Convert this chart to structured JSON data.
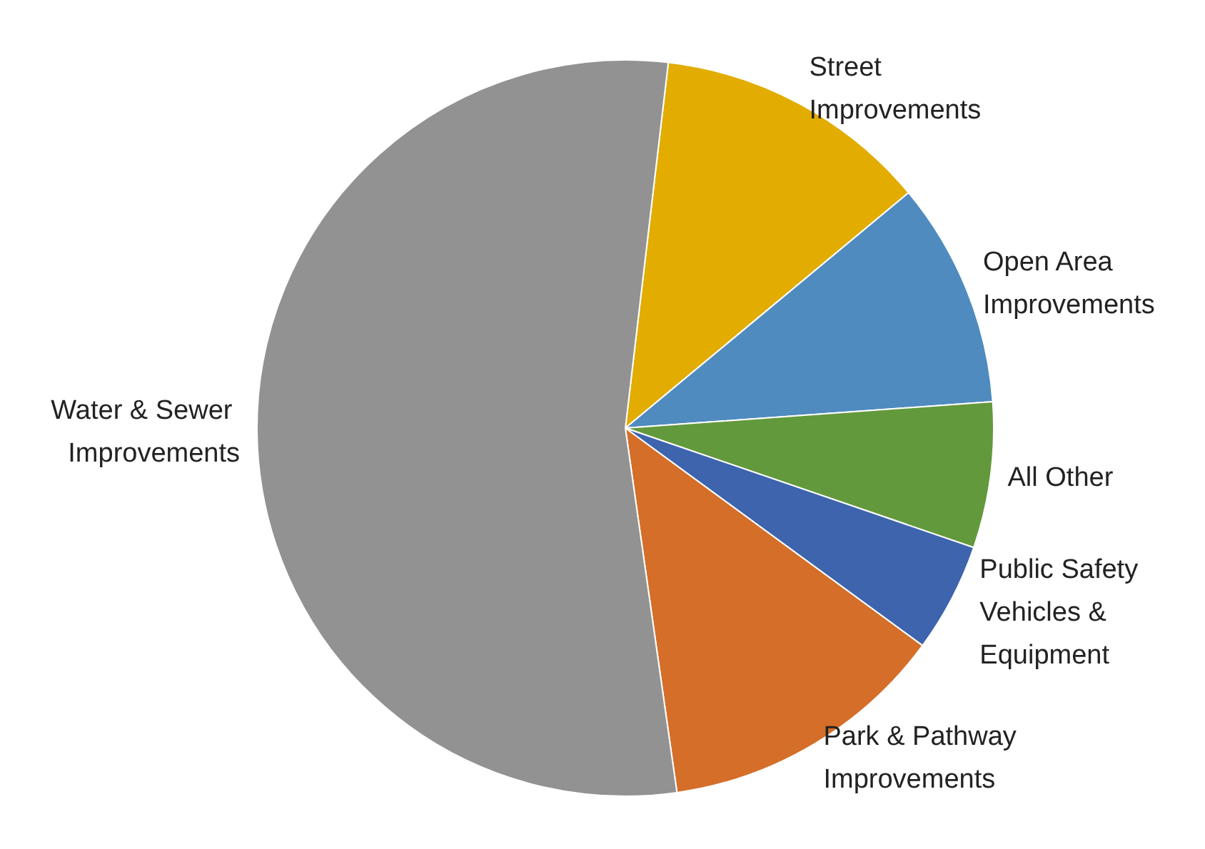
{
  "chart_data": {
    "type": "pie",
    "categories": [
      "Street Improvements",
      "Open Area Improvements",
      "All Other",
      "Public Safety Vehicles & Equipment",
      "Park & Pathway Improvements",
      "Water & Sewer Improvements"
    ],
    "values": [
      12.1,
      9.9,
      6.4,
      4.8,
      12.7,
      54.1
    ],
    "colors": [
      "#e2ac00",
      "#4f8bbf",
      "#63993d",
      "#3d64ad",
      "#d46e28",
      "#929292"
    ],
    "legend": false
  }
}
